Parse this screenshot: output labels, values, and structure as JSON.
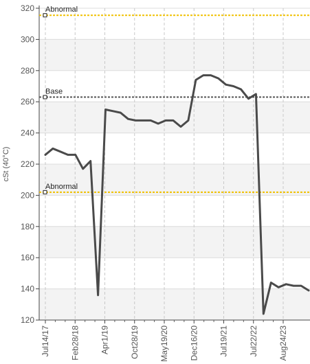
{
  "chart_data": {
    "type": "line",
    "ylabel": "cSt (40°C)",
    "ylim": [
      120,
      320
    ],
    "y_ticks": [
      120,
      140,
      160,
      180,
      200,
      220,
      240,
      260,
      280,
      300,
      320
    ],
    "x_tick_labels": [
      "Jul14/17",
      "Feb28/18",
      "Apr1/19",
      "Oct28/19",
      "May19/20",
      "Dec16/20",
      "Jul19/21",
      "Jul22/22",
      "Aug24/23"
    ],
    "grid": true,
    "series": [
      {
        "color": "#4a4a4a",
        "values": [
          226,
          230,
          228,
          226,
          226,
          217,
          222,
          136,
          255,
          254,
          253,
          249,
          248,
          248,
          248,
          246,
          248,
          248,
          244,
          248,
          274,
          277,
          277,
          275,
          271,
          270,
          268,
          262,
          265,
          124,
          144,
          141,
          143,
          142,
          142,
          139
        ]
      }
    ],
    "reference_lines": [
      {
        "label": "Abnormal",
        "value": 315.5,
        "color": "#f0c000"
      },
      {
        "label": "Base",
        "value": 263,
        "color": "#555555"
      },
      {
        "label": "Abnormal",
        "value": 202,
        "color": "#f0c000"
      }
    ]
  }
}
